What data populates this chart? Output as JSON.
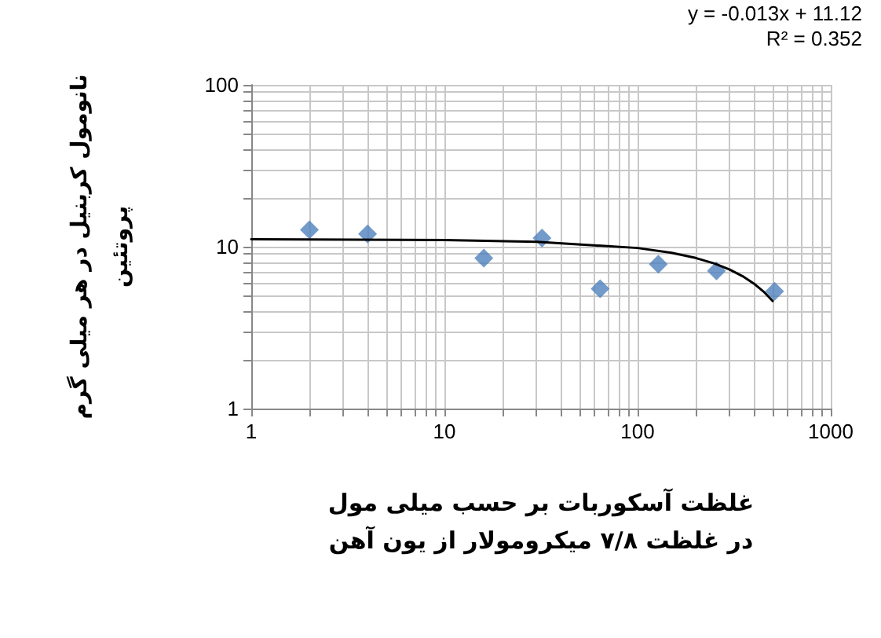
{
  "chart_data": {
    "type": "scatter",
    "xlabel": "غلظت آسکوربات بر حسب میلی مول\nدر غلظت ۷/۸ میکرومولار از یون آهن",
    "ylabel": "نانومول کربنیل در هر میلی گرم\nپروتئین",
    "annotations": [
      "y = -0.013x + 11.12",
      "R² = 0.352"
    ],
    "log": "xy",
    "grid": true,
    "xlim": [
      1,
      1000
    ],
    "ylim": [
      1,
      100
    ],
    "xticks": [
      1,
      {
        "value": 2,
        "label": null
      },
      {
        "value": 3,
        "label": null
      },
      {
        "value": 4,
        "label": null
      },
      {
        "value": 5,
        "label": null
      },
      {
        "value": 6,
        "label": null
      },
      {
        "value": 7,
        "label": null
      },
      {
        "value": 8,
        "label": null
      },
      {
        "value": 9,
        "label": null
      },
      10,
      {
        "value": 20,
        "label": null
      },
      {
        "value": 30,
        "label": null
      },
      {
        "value": 40,
        "label": null
      },
      {
        "value": 50,
        "label": null
      },
      {
        "value": 60,
        "label": null
      },
      {
        "value": 70,
        "label": null
      },
      {
        "value": 80,
        "label": null
      },
      {
        "value": 90,
        "label": null
      },
      100,
      {
        "value": 200,
        "label": null
      },
      {
        "value": 300,
        "label": null
      },
      {
        "value": 400,
        "label": null
      },
      {
        "value": 500,
        "label": null
      },
      {
        "value": 600,
        "label": null
      },
      {
        "value": 700,
        "label": null
      },
      {
        "value": 800,
        "label": null
      },
      {
        "value": 900,
        "label": null
      },
      1000
    ],
    "yticks": [
      1,
      {
        "value": 2,
        "label": null
      },
      {
        "value": 3,
        "label": null
      },
      {
        "value": 4,
        "label": null
      },
      {
        "value": 5,
        "label": null
      },
      {
        "value": 6,
        "label": null
      },
      {
        "value": 7,
        "label": null
      },
      {
        "value": 8,
        "label": null
      },
      {
        "value": 9,
        "label": null
      },
      10,
      {
        "value": 20,
        "label": null
      },
      {
        "value": 30,
        "label": null
      },
      {
        "value": 40,
        "label": null
      },
      {
        "value": 50,
        "label": null
      },
      {
        "value": 60,
        "label": null
      },
      {
        "value": 70,
        "label": null
      },
      {
        "value": 80,
        "label": null
      },
      {
        "value": 90,
        "label": null
      },
      100
    ],
    "series": [
      {
        "type": "scatter",
        "marker": "diamond",
        "color": "#4f81bd",
        "x": [
          2,
          4,
          16,
          32,
          64,
          128,
          256,
          512
        ],
        "values": [
          12.7,
          12,
          8.5,
          11.3,
          5.5,
          7.8,
          7.1,
          5.3
        ]
      },
      {
        "type": "line",
        "marker": "none",
        "color": "#000000",
        "x": [
          1,
          10,
          30,
          100,
          150,
          200,
          250,
          300,
          350,
          400,
          450,
          500
        ],
        "values": [
          11.11,
          10.99,
          10.73,
          9.82,
          9.17,
          8.52,
          7.87,
          7.22,
          6.57,
          5.92,
          5.27,
          4.62
        ]
      }
    ]
  }
}
